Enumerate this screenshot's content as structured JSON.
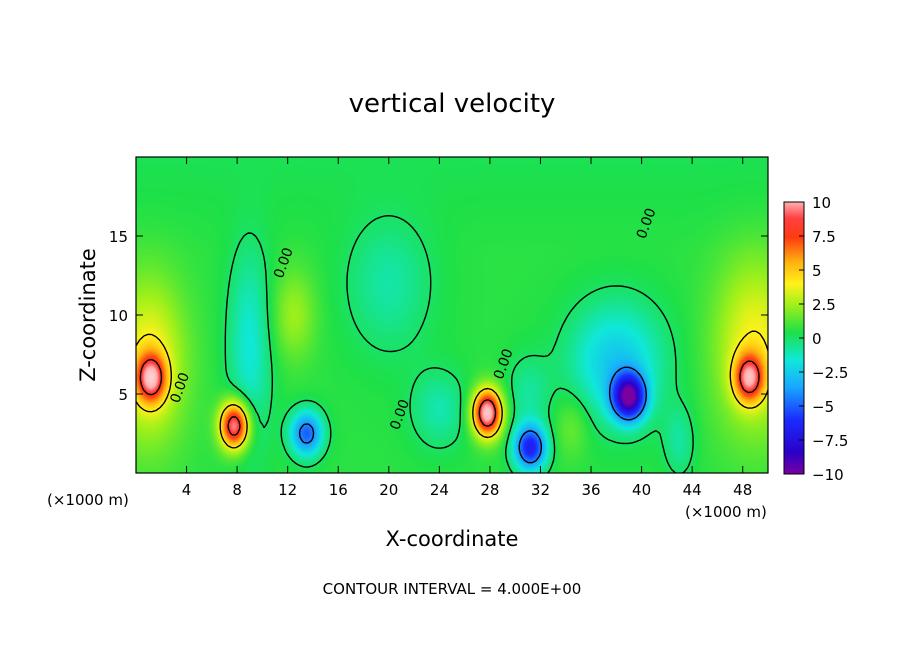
{
  "chart_data": {
    "type": "heatmap",
    "title": "vertical velocity",
    "xlabel": "X-coordinate",
    "ylabel": "Z-coordinate",
    "x_unit": "(×1000 m)",
    "x_unit_right": "(×1000 m)",
    "xlim": [
      0,
      50
    ],
    "ylim": [
      0,
      20
    ],
    "x_ticks": [
      "4",
      "8",
      "12",
      "16",
      "20",
      "24",
      "28",
      "32",
      "36",
      "40",
      "44",
      "48"
    ],
    "x_tick_values": [
      4,
      8,
      12,
      16,
      20,
      24,
      28,
      32,
      36,
      40,
      44,
      48
    ],
    "y_ticks": [
      "5",
      "10",
      "15"
    ],
    "y_tick_values": [
      5,
      10,
      15
    ],
    "colorbar": {
      "labels": [
        "10",
        "7.5",
        "5",
        "2.5",
        "0",
        "−2.5",
        "−5",
        "−7.5",
        "−10"
      ],
      "values": [
        10,
        7.5,
        5,
        2.5,
        0,
        -2.5,
        -5,
        -7.5,
        -10
      ],
      "range": [
        -10,
        10
      ]
    },
    "contour_labels": [
      {
        "text": "0.00",
        "x": 3.8,
        "z": 5.3
      },
      {
        "text": "0.00",
        "x": 12.0,
        "z": 13.2
      },
      {
        "text": "0.00",
        "x": 21.2,
        "z": 3.6
      },
      {
        "text": "0.00",
        "x": 29.4,
        "z": 6.8
      },
      {
        "text": "0.00",
        "x": 40.7,
        "z": 15.7
      }
    ],
    "footer": "CONTOUR INTERVAL = 4.000E+00",
    "features": [
      {
        "sign": "up",
        "x": 1.2,
        "z": 6.0,
        "peak": 9
      },
      {
        "sign": "up",
        "x": 7.8,
        "z": 3.0,
        "peak": 12
      },
      {
        "sign": "up",
        "x": 27.8,
        "z": 3.8,
        "peak": 13
      },
      {
        "sign": "up",
        "x": 48.5,
        "z": 6.0,
        "peak": 9
      },
      {
        "sign": "down",
        "x": 39.0,
        "z": 4.8,
        "peak": -12
      },
      {
        "sign": "down",
        "x": 31.2,
        "z": 1.6,
        "peak": -9
      },
      {
        "sign": "down",
        "x": 13.5,
        "z": 2.5,
        "peak": -7
      }
    ]
  }
}
